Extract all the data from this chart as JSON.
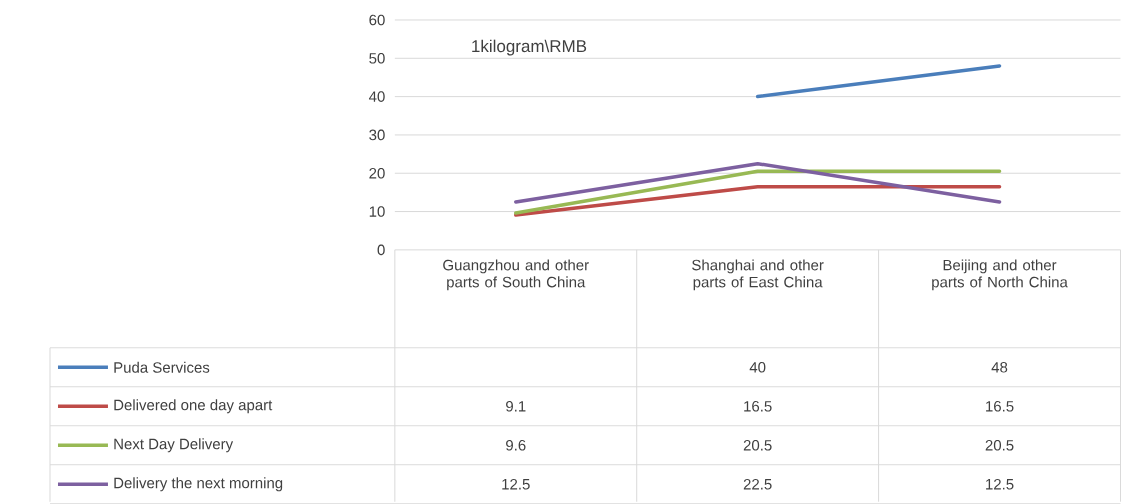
{
  "chart_data": {
    "type": "line",
    "categories": [
      "Guangzhou and other parts of South China",
      "Shanghai and other parts of East China",
      "Beijing and other parts of North China"
    ],
    "series": [
      {
        "name": "Puda Services",
        "color": "#4a7ebb",
        "values": [
          null,
          40,
          48
        ]
      },
      {
        "name": "Delivered one day apart",
        "color": "#be4b48",
        "values": [
          9.1,
          16.5,
          16.5
        ]
      },
      {
        "name": "Next Day Delivery",
        "color": "#98b954",
        "values": [
          9.6,
          20.5,
          20.5
        ]
      },
      {
        "name": "Delivery the next morning",
        "color": "#7d60a0",
        "values": [
          12.5,
          22.5,
          12.5
        ]
      }
    ],
    "ylim": [
      0,
      60
    ],
    "yticks": [
      0,
      10,
      20,
      30,
      40,
      50,
      60
    ],
    "grid": "y",
    "legend": "bottom",
    "marker": "none",
    "line_style": "solid",
    "data_labels": true,
    "annotations": [
      "1kilogram\\RMB"
    ]
  }
}
